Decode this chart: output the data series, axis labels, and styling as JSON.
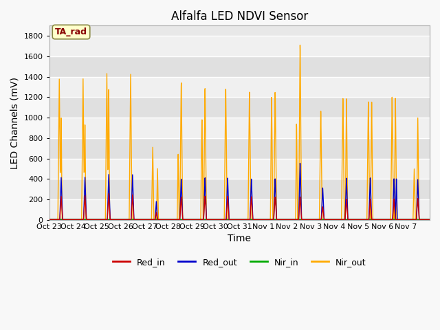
{
  "title": "Alfalfa LED NDVI Sensor",
  "xlabel": "Time",
  "ylabel": "LED Channels (mV)",
  "ylim": [
    0,
    1900
  ],
  "yticks": [
    0,
    200,
    400,
    600,
    800,
    1000,
    1200,
    1400,
    1600,
    1800
  ],
  "xtick_labels": [
    "Oct 23",
    "Oct 24",
    "Oct 25",
    "Oct 26",
    "Oct 27",
    "Oct 28",
    "Oct 29",
    "Oct 30",
    "Oct 31",
    "Nov 1",
    "Nov 2",
    "Nov 3",
    "Nov 4",
    "Nov 5",
    "Nov 6",
    "Nov 7"
  ],
  "legend_labels": [
    "Red_in",
    "Red_out",
    "Nir_in",
    "Nir_out"
  ],
  "legend_colors": [
    "#cc0000",
    "#0000cc",
    "#00aa00",
    "#ffaa00"
  ],
  "annotation_text": "TA_rad",
  "annotation_color": "#880000",
  "annotation_bg": "#ffffcc",
  "annotation_border": "#888844",
  "plot_bg": "#e8e8e8",
  "fig_bg": "#f8f8f8",
  "grid_color": "#ffffff",
  "title_fontsize": 12,
  "axis_fontsize": 10,
  "tick_fontsize": 8
}
